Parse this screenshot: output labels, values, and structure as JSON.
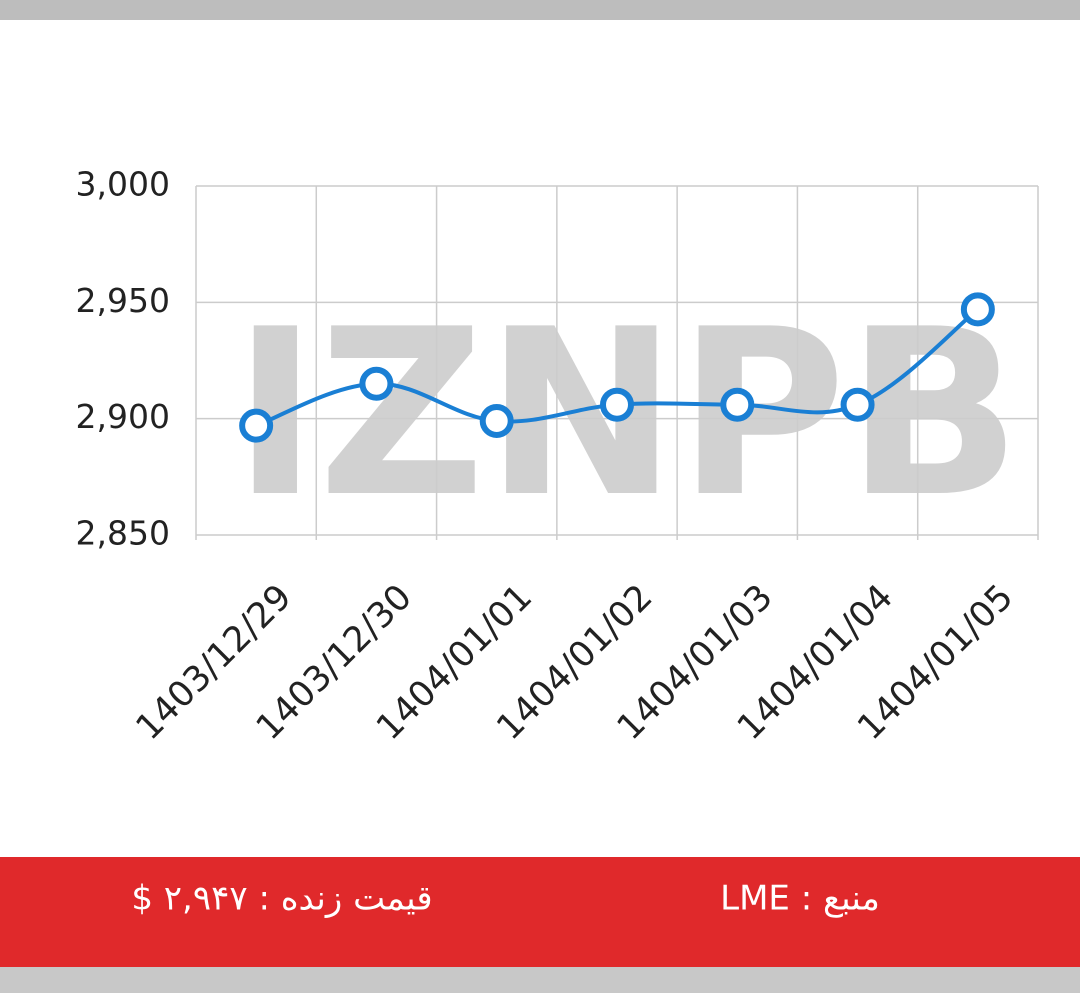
{
  "chart_data": {
    "type": "line",
    "watermark": "IZNPB",
    "categories": [
      "1403/12/29",
      "1403/12/30",
      "1404/01/01",
      "1404/01/02",
      "1404/01/03",
      "1404/01/04",
      "1404/01/05"
    ],
    "values": [
      2897,
      2915,
      2899,
      2906,
      2906,
      2906,
      2947
    ],
    "color": "#1a7fd4",
    "ylim": [
      2850,
      3000
    ],
    "yticks": [
      {
        "value": 2850,
        "label": "2,850"
      },
      {
        "value": 2900,
        "label": "2,900"
      },
      {
        "value": 2950,
        "label": "2,950"
      },
      {
        "value": 3000,
        "label": "3,000"
      }
    ],
    "grid": true
  },
  "footer": {
    "live_price": "قیمت زنده : ۲,۹۴۷ $",
    "source": "منبع : LME"
  }
}
